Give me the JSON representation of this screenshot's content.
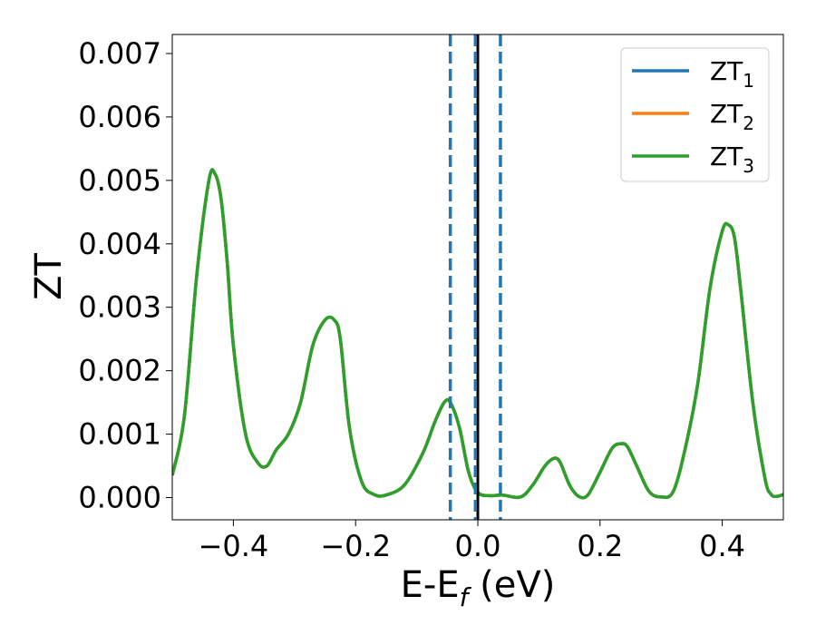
{
  "chart_data": {
    "type": "line",
    "xlabel": "E-E",
    "xlabel_sub": "f",
    "xlabel_unit": " (eV)",
    "ylabel": "ZT",
    "xlim": [
      -0.5,
      0.5
    ],
    "ylim": [
      -0.00035,
      0.0073
    ],
    "xticks": [
      -0.4,
      -0.2,
      0.0,
      0.2,
      0.4
    ],
    "xtick_labels": [
      "−0.4",
      "−0.2",
      "0.0",
      "0.2",
      "0.4"
    ],
    "yticks": [
      0.0,
      0.001,
      0.002,
      0.003,
      0.004,
      0.005,
      0.006,
      0.007
    ],
    "ytick_labels": [
      "0.000",
      "0.001",
      "0.002",
      "0.003",
      "0.004",
      "0.005",
      "0.006",
      "0.007"
    ],
    "grid": false,
    "legend_position": "top-right",
    "x": [
      -0.5,
      -0.48,
      -0.46,
      -0.44,
      -0.43,
      -0.42,
      -0.41,
      -0.4,
      -0.38,
      -0.36,
      -0.345,
      -0.33,
      -0.31,
      -0.29,
      -0.27,
      -0.25,
      -0.235,
      -0.225,
      -0.21,
      -0.19,
      -0.17,
      -0.15,
      -0.12,
      -0.09,
      -0.07,
      -0.055,
      -0.045,
      -0.03,
      -0.015,
      0.0,
      0.02,
      0.04,
      0.07,
      0.09,
      0.11,
      0.125,
      0.135,
      0.15,
      0.165,
      0.18,
      0.2,
      0.22,
      0.235,
      0.245,
      0.26,
      0.28,
      0.3,
      0.32,
      0.34,
      0.36,
      0.38,
      0.4,
      0.41,
      0.42,
      0.43,
      0.45,
      0.47,
      0.48,
      0.49,
      0.5
    ],
    "series": [
      {
        "name": "ZT",
        "sub": "1",
        "color": "#1f77b4",
        "values": [
          0.00035,
          0.0013,
          0.0035,
          0.005,
          0.0051,
          0.0047,
          0.0037,
          0.0024,
          0.001,
          0.00055,
          0.0005,
          0.00075,
          0.001,
          0.0015,
          0.0024,
          0.0028,
          0.0028,
          0.0025,
          0.0011,
          0.00025,
          5e-05,
          4e-05,
          0.0002,
          0.0007,
          0.0012,
          0.0015,
          0.0015,
          0.0011,
          0.0004,
          8e-05,
          3e-05,
          4e-05,
          1e-05,
          0.0002,
          0.0005,
          0.00062,
          0.00055,
          0.0002,
          2e-05,
          4e-05,
          0.0004,
          0.00078,
          0.00085,
          0.0008,
          0.0005,
          0.0001,
          1e-05,
          0.0001,
          0.0008,
          0.0018,
          0.0033,
          0.0042,
          0.0043,
          0.0041,
          0.0033,
          0.0015,
          0.0003,
          5e-05,
          2e-05,
          5e-05
        ]
      },
      {
        "name": "ZT",
        "sub": "2",
        "color": "#ff7f0e",
        "values": [
          0.00035,
          0.0013,
          0.0035,
          0.005,
          0.0051,
          0.0047,
          0.0037,
          0.0024,
          0.001,
          0.00055,
          0.0005,
          0.00075,
          0.001,
          0.0015,
          0.0024,
          0.0028,
          0.0028,
          0.0025,
          0.0011,
          0.00025,
          5e-05,
          4e-05,
          0.0002,
          0.0007,
          0.0012,
          0.0015,
          0.0015,
          0.0011,
          0.0004,
          8e-05,
          3e-05,
          4e-05,
          1e-05,
          0.0002,
          0.0005,
          0.00062,
          0.00055,
          0.0002,
          2e-05,
          4e-05,
          0.0004,
          0.00078,
          0.00085,
          0.0008,
          0.0005,
          0.0001,
          1e-05,
          0.0001,
          0.0008,
          0.0018,
          0.0033,
          0.0042,
          0.0043,
          0.0041,
          0.0033,
          0.0015,
          0.0003,
          5e-05,
          2e-05,
          5e-05
        ]
      },
      {
        "name": "ZT",
        "sub": "3",
        "color": "#2ca02c",
        "values": [
          0.00035,
          0.0013,
          0.0035,
          0.005,
          0.0051,
          0.0047,
          0.0037,
          0.0024,
          0.001,
          0.00055,
          0.0005,
          0.00075,
          0.001,
          0.0015,
          0.0024,
          0.0028,
          0.0028,
          0.0025,
          0.0011,
          0.00025,
          5e-05,
          4e-05,
          0.0002,
          0.0007,
          0.0012,
          0.0015,
          0.0015,
          0.0011,
          0.0004,
          8e-05,
          3e-05,
          4e-05,
          1e-05,
          0.0002,
          0.0005,
          0.00062,
          0.00055,
          0.0002,
          2e-05,
          4e-05,
          0.0004,
          0.00078,
          0.00085,
          0.0008,
          0.0005,
          0.0001,
          1e-05,
          0.0001,
          0.0008,
          0.0018,
          0.0033,
          0.0042,
          0.0043,
          0.0041,
          0.0033,
          0.0015,
          0.0003,
          5e-05,
          2e-05,
          5e-05
        ]
      }
    ],
    "vlines": [
      {
        "x": 0.0,
        "style": "solid",
        "color": "#000000"
      },
      {
        "x": -0.045,
        "style": "dashed",
        "color": "#1f77b4"
      },
      {
        "x": -0.004,
        "style": "dashed",
        "color": "#1f77b4"
      },
      {
        "x": 0.037,
        "style": "dashed",
        "color": "#1f77b4"
      }
    ]
  }
}
